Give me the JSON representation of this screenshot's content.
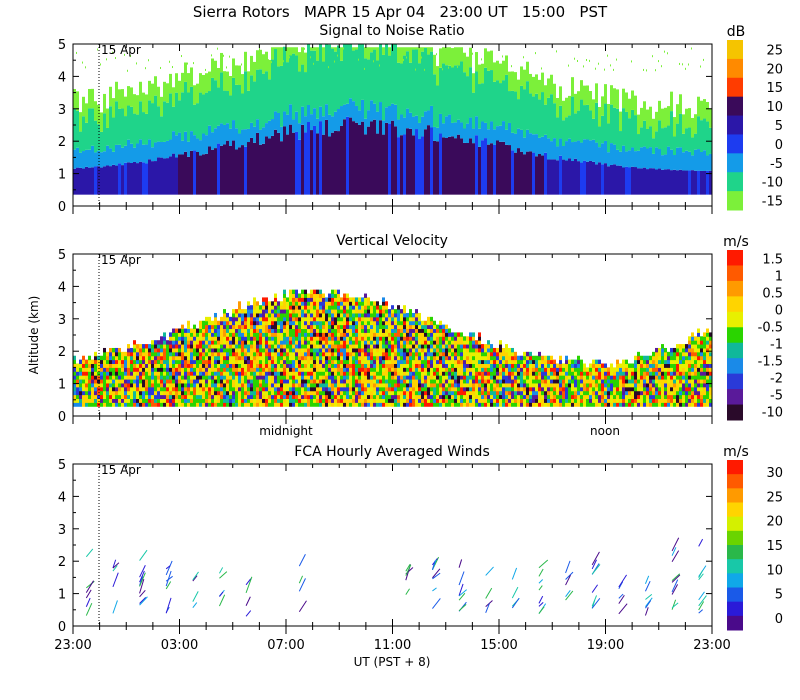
{
  "header": {
    "title": "Sierra Rotors   MAPR 15 Apr 04   23:00 UT   15:00   PST"
  },
  "chart_data": [
    {
      "type": "heatmap",
      "title": "Signal to Noise Ratio",
      "ylabel": "",
      "ylim": [
        0,
        5
      ],
      "yticks": [
        "0",
        "1",
        "2",
        "3",
        "4",
        "5"
      ],
      "day_marker": "15 Apr",
      "colorbar": {
        "unit": "dB",
        "labels": [
          "25",
          "20",
          "15",
          "10",
          "5",
          "0",
          "-5",
          "-10",
          "-15"
        ],
        "colors": [
          "#f5c400",
          "#ff8a00",
          "#ff3c00",
          "#3a0a5a",
          "#2b17a8",
          "#1d3cf0",
          "#149be8",
          "#1fd48a",
          "#7cf03a"
        ]
      }
    },
    {
      "type": "heatmap",
      "title": "Vertical Velocity",
      "ylabel": "Altitude (km)",
      "ylim": [
        0,
        5
      ],
      "yticks": [
        "0",
        "1",
        "2",
        "3",
        "4",
        "5"
      ],
      "day_marker": "15 Apr",
      "time_markers": [
        "midnight",
        "noon"
      ],
      "colorbar": {
        "unit": "m/s",
        "labels": [
          "1.5",
          "1",
          "0.5",
          "0",
          "-0.5",
          "-1",
          "-1.5",
          "-2",
          "-5",
          "-10"
        ],
        "colors": [
          "#ff1a00",
          "#ff5a00",
          "#ff9a00",
          "#ffd400",
          "#e8f000",
          "#2ad400",
          "#10b89a",
          "#1a8ae8",
          "#2a3ad8",
          "#5a1a9a",
          "#2a0a2a"
        ]
      }
    },
    {
      "type": "scatter",
      "title": "FCA Hourly Averaged Winds",
      "ylabel": "",
      "ylim": [
        0,
        5
      ],
      "yticks": [
        "0",
        "1",
        "2",
        "3",
        "4",
        "5"
      ],
      "day_marker": "15 Apr",
      "xticks": [
        "23:00",
        "03:00",
        "07:00",
        "11:00",
        "15:00",
        "19:00",
        "23:00"
      ],
      "xlabel": "UT  (PST + 8)",
      "colorbar": {
        "unit": "m/s",
        "labels": [
          "30",
          "25",
          "20",
          "15",
          "10",
          "5",
          "0"
        ],
        "colors": [
          "#ff1a00",
          "#ff5a00",
          "#ff9a00",
          "#ffd400",
          "#d4f000",
          "#6ad400",
          "#2ab84a",
          "#18c8a8",
          "#10a8e8",
          "#1a5ae8",
          "#2a1ad8",
          "#4a0a8a"
        ]
      }
    }
  ]
}
